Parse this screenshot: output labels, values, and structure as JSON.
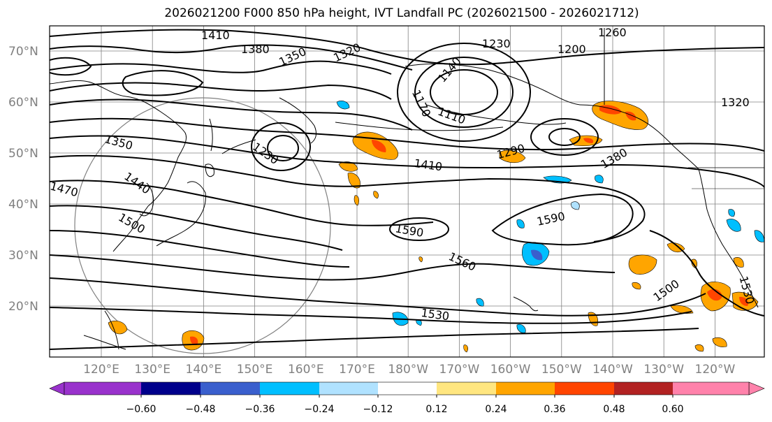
{
  "title": "2026021200 F000 850 hPa height, IVT Landfall PC (2026021500 - 2026021712)",
  "map": {
    "lat_labels": [
      "70°N",
      "60°N",
      "50°N",
      "40°N",
      "30°N",
      "20°N"
    ],
    "lon_labels": [
      "120°E",
      "130°E",
      "140°E",
      "150°E",
      "160°E",
      "170°E",
      "180°W",
      "170°W",
      "160°W",
      "150°W",
      "140°W",
      "130°W",
      "120°W"
    ],
    "contour_labels": [
      "1410",
      "1380",
      "1350",
      "1320",
      "1260",
      "1230",
      "1200",
      "1140",
      "1170",
      "1110",
      "1290",
      "1380",
      "1320",
      "1350",
      "1230",
      "1410",
      "1470",
      "1440",
      "1500",
      "1590",
      "1590",
      "1560",
      "1500",
      "1530",
      "1530"
    ],
    "colors": {
      "contour": "#000000",
      "grid": "#808080",
      "coast": "#000000"
    }
  },
  "colorbar": {
    "tick_labels": [
      "−0.60",
      "−0.48",
      "−0.36",
      "−0.24",
      "−0.12",
      "0.12",
      "0.24",
      "0.36",
      "0.48",
      "0.60"
    ],
    "colors": [
      "#9932cc",
      "#00008b",
      "#3a5fcd",
      "#00bfff",
      "#b0e2ff",
      "#ffffff",
      "#ffe680",
      "#ffa500",
      "#ff4500",
      "#b22222",
      "#ff82ab"
    ]
  }
}
